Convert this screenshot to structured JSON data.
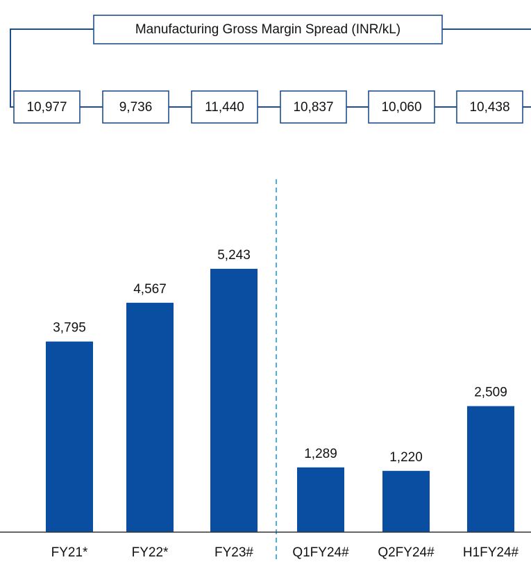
{
  "chart_data": {
    "type": "bar",
    "title": "Manufacturing Gross Margin Spread (INR/kL)",
    "spread": {
      "values": [
        10977,
        9736,
        11440,
        10837,
        10060,
        10438
      ],
      "value_labels": [
        "10,977",
        "9,736",
        "11,440",
        "10,837",
        "10,060",
        "10,438"
      ]
    },
    "categories": [
      "FY21*",
      "FY22*",
      "FY23#",
      "Q1FY24#",
      "Q2FY24#",
      "H1FY24#"
    ],
    "values": [
      3795,
      4567,
      5243,
      1289,
      1220,
      2509
    ],
    "value_labels": [
      "3,795",
      "4,567",
      "5,243",
      "1,289",
      "1,220",
      "2,509"
    ],
    "color": "#0a4ea2"
  }
}
